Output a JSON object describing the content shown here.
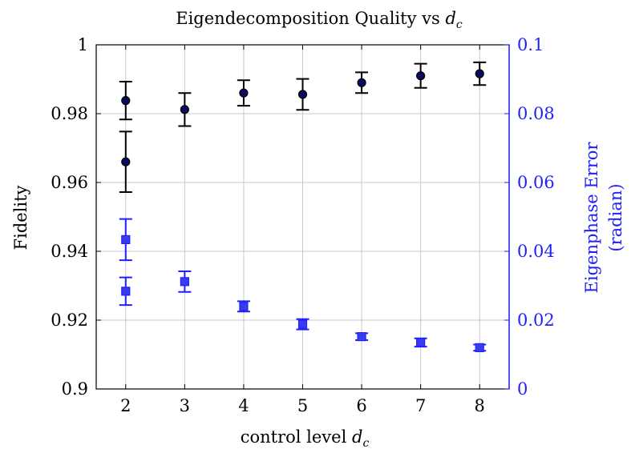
{
  "chart_data": {
    "type": "scatter",
    "title_text": "Eigendecomposition Quality vs ",
    "title_math": "d",
    "title_sub": "c",
    "xlabel_text": "control level ",
    "xlabel_math": "d",
    "xlabel_sub": "c",
    "ylabel": "Fidelity",
    "y2label_line1": "Eigenphase Error",
    "y2label_line2": "(radian)",
    "xlim": [
      1.5,
      8.5
    ],
    "ylim": [
      0.9,
      1.0
    ],
    "y2lim": [
      0,
      0.1
    ],
    "grid": true,
    "x_ticks": [
      2,
      3,
      4,
      5,
      6,
      7,
      8
    ],
    "y_ticks": [
      "0.9",
      "0.92",
      "0.94",
      "0.96",
      "0.98",
      "1"
    ],
    "y_tick_values": [
      0.9,
      0.92,
      0.94,
      0.96,
      0.98,
      1.0
    ],
    "y2_ticks": [
      "0",
      "0.02",
      "0.04",
      "0.06",
      "0.08",
      "0.1"
    ],
    "y2_tick_values": [
      0,
      0.02,
      0.04,
      0.06,
      0.08,
      0.1
    ],
    "series": [
      {
        "axis": "left",
        "marker": "circle",
        "color": "#000000",
        "fill": "#0a0a60",
        "points": [
          {
            "x": 2,
            "y": 0.9838,
            "err": 0.0055
          },
          {
            "x": 2,
            "y": 0.966,
            "err": 0.0088
          },
          {
            "x": 3,
            "y": 0.9812,
            "err": 0.0048
          },
          {
            "x": 4,
            "y": 0.986,
            "err": 0.0037
          },
          {
            "x": 5,
            "y": 0.9856,
            "err": 0.0045
          },
          {
            "x": 6,
            "y": 0.989,
            "err": 0.003
          },
          {
            "x": 7,
            "y": 0.991,
            "err": 0.0035
          },
          {
            "x": 8,
            "y": 0.9916,
            "err": 0.0033
          }
        ]
      },
      {
        "axis": "right",
        "marker": "square",
        "color": "#1f1fff",
        "fill": "#3a3af0",
        "points": [
          {
            "x": 2,
            "y": 0.0434,
            "err": 0.006
          },
          {
            "x": 2,
            "y": 0.0284,
            "err": 0.004
          },
          {
            "x": 3,
            "y": 0.0312,
            "err": 0.003
          },
          {
            "x": 4,
            "y": 0.024,
            "err": 0.0015
          },
          {
            "x": 5,
            "y": 0.0188,
            "err": 0.0015
          },
          {
            "x": 6,
            "y": 0.0152,
            "err": 0.001
          },
          {
            "x": 7,
            "y": 0.0135,
            "err": 0.0012
          },
          {
            "x": 8,
            "y": 0.012,
            "err": 0.0009
          }
        ]
      }
    ]
  }
}
